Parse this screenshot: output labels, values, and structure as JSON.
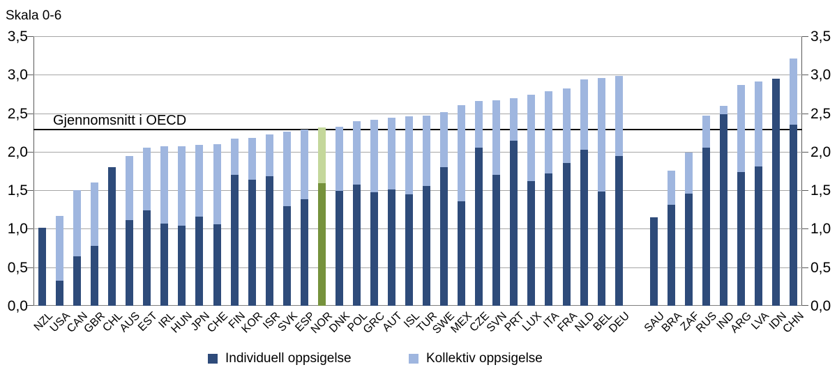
{
  "chart_data": {
    "type": "bar",
    "stacked": true,
    "title": "Skala 0-6",
    "ylim": [
      0,
      3.5
    ],
    "grid": true,
    "dual_y_axis": true,
    "yticks": [
      {
        "value": 3.5,
        "label": "3,5"
      },
      {
        "value": 3.0,
        "label": "3,0"
      },
      {
        "value": 2.5,
        "label": "2,5"
      },
      {
        "value": 2.0,
        "label": "2,0"
      },
      {
        "value": 1.5,
        "label": "1,5"
      },
      {
        "value": 1.0,
        "label": "1,0"
      },
      {
        "value": 0.5,
        "label": "0,5"
      },
      {
        "value": 0.0,
        "label": "0,0"
      }
    ],
    "reference_line": {
      "label": "Gjennomsnitt i OECD",
      "value": 2.29,
      "color": "#000000"
    },
    "categories": [
      "NZL",
      "USA",
      "CAN",
      "GBR",
      "CHL",
      "AUS",
      "EST",
      "IRL",
      "HUN",
      "JPN",
      "CHE",
      "FIN",
      "KOR",
      "ISR",
      "SVK",
      "ESP",
      "NOR",
      "DNK",
      "POL",
      "GRC",
      "AUT",
      "ISL",
      "TUR",
      "SWE",
      "MEX",
      "CZE",
      "SVN",
      "PRT",
      "LUX",
      "ITA",
      "FRA",
      "NLD",
      "BEL",
      "DEU",
      "SAU",
      "BRA",
      "ZAF",
      "RUS",
      "IND",
      "ARG",
      "LVA",
      "IDN",
      "CHN"
    ],
    "gap_after_index": 33,
    "series": [
      {
        "name": "Individuell oppsigelse",
        "color": "#2e4b7a",
        "values": [
          1.01,
          0.33,
          0.64,
          0.78,
          1.8,
          1.11,
          1.24,
          1.07,
          1.04,
          1.16,
          1.06,
          1.7,
          1.64,
          1.68,
          1.29,
          1.38,
          1.59,
          1.49,
          1.57,
          1.47,
          1.51,
          1.45,
          1.56,
          1.8,
          1.36,
          2.05,
          1.7,
          2.14,
          1.62,
          1.72,
          1.85,
          2.03,
          1.48,
          1.94,
          1.15,
          1.31,
          1.46,
          2.05,
          2.49,
          1.74,
          1.81,
          2.95,
          2.35
        ]
      },
      {
        "name": "Kollektiv oppsigelse",
        "color": "#9fb6df",
        "values": [
          0.0,
          0.84,
          0.86,
          0.82,
          0.0,
          0.83,
          0.81,
          1.0,
          1.03,
          0.93,
          1.04,
          0.47,
          0.54,
          0.54,
          0.97,
          0.9,
          0.72,
          0.83,
          0.82,
          0.94,
          0.93,
          1.01,
          0.91,
          0.71,
          1.25,
          0.61,
          0.97,
          0.55,
          1.12,
          1.07,
          0.97,
          0.91,
          1.47,
          1.04,
          0.0,
          0.44,
          0.53,
          0.42,
          0.11,
          1.13,
          1.1,
          0.0,
          0.86
        ]
      }
    ],
    "highlight": {
      "category": "NOR",
      "colors": {
        "individual": "#76923c",
        "collective": "#c4d79b"
      }
    },
    "legend": {
      "position": "bottom",
      "entries": [
        {
          "label": "Individuell oppsigelse",
          "color": "#2e4b7a"
        },
        {
          "label": "Kollektiv oppsigelse",
          "color": "#9fb6df"
        }
      ]
    },
    "colors": {
      "grid": "#a6a6a6",
      "axis": "#595959",
      "text": "#000000"
    }
  }
}
